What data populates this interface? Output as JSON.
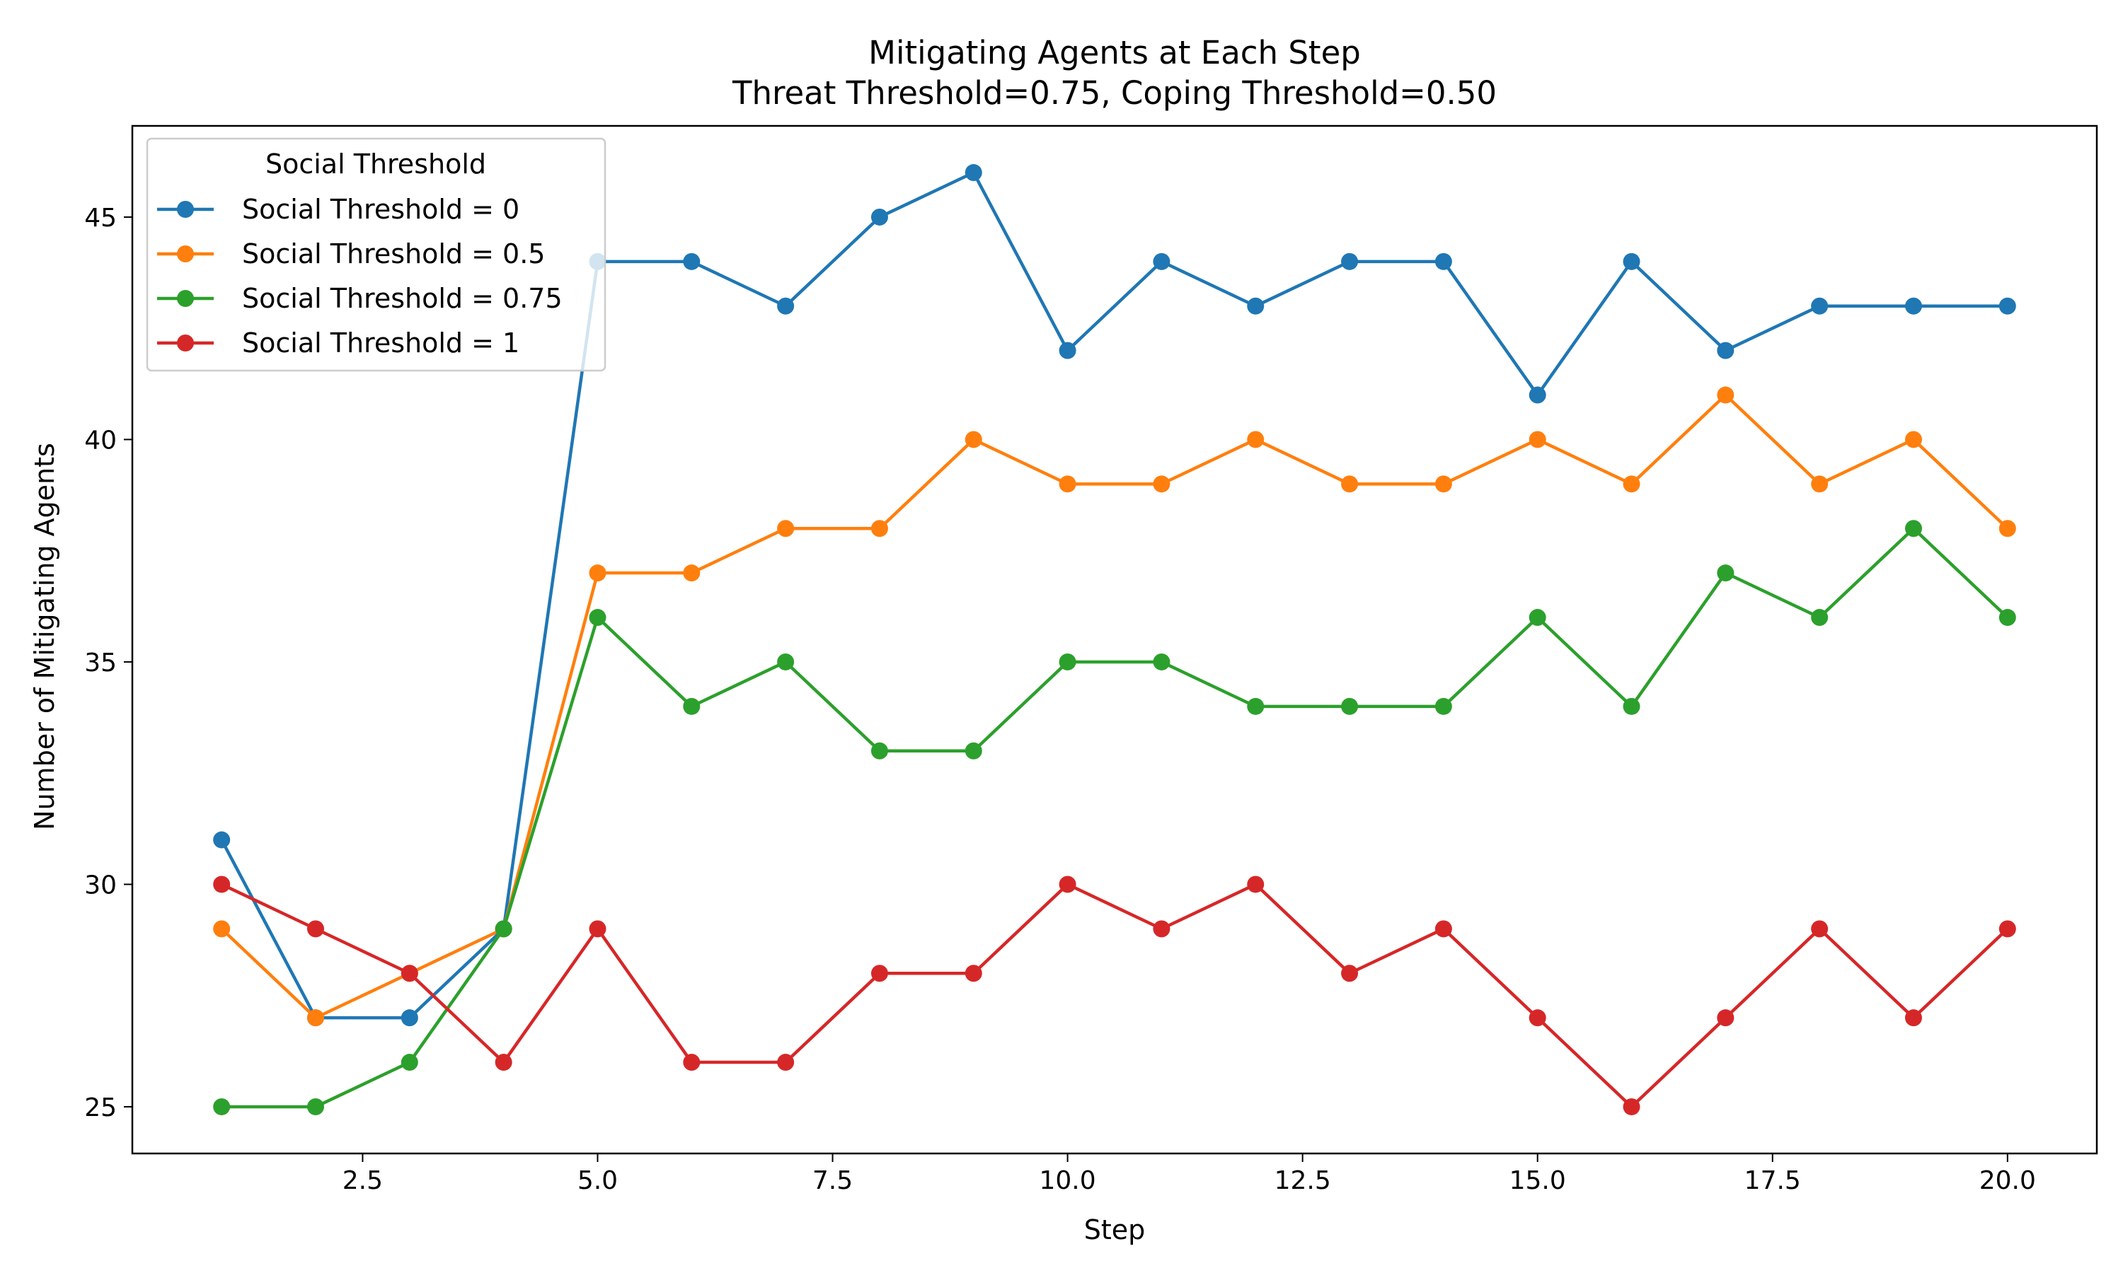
{
  "chart_data": {
    "type": "line",
    "title": "Mitigating Agents at Each Step",
    "subtitle": "Threat Threshold=0.75, Coping Threshold=0.50",
    "xlabel": "Step",
    "ylabel": "Number of Mitigating Agents",
    "xlim": [
      0.05,
      20.95
    ],
    "ylim": [
      23.95,
      47.05
    ],
    "xticks": [
      2.5,
      5.0,
      7.5,
      10.0,
      12.5,
      15.0,
      17.5,
      20.0
    ],
    "xtick_labels": [
      "2.5",
      "5.0",
      "7.5",
      "10.0",
      "12.5",
      "15.0",
      "17.5",
      "20.0"
    ],
    "yticks": [
      25,
      30,
      35,
      40,
      45
    ],
    "ytick_labels": [
      "25",
      "30",
      "35",
      "40",
      "45"
    ],
    "grid": false,
    "legend": {
      "title": "Social Threshold",
      "position": "top-left"
    },
    "x": [
      1,
      2,
      3,
      4,
      5,
      6,
      7,
      8,
      9,
      10,
      11,
      12,
      13,
      14,
      15,
      16,
      17,
      18,
      19,
      20
    ],
    "series": [
      {
        "name": "Social Threshold = 0",
        "color": "#1f77b4",
        "values": [
          31,
          27,
          27,
          29,
          44,
          44,
          43,
          45,
          46,
          42,
          44,
          43,
          44,
          44,
          41,
          44,
          42,
          43,
          43,
          43
        ]
      },
      {
        "name": "Social Threshold = 0.5",
        "color": "#ff7f0e",
        "values": [
          29,
          27,
          28,
          29,
          37,
          37,
          38,
          38,
          40,
          39,
          39,
          40,
          39,
          39,
          40,
          39,
          41,
          39,
          40,
          38
        ]
      },
      {
        "name": "Social Threshold = 0.75",
        "color": "#2ca02c",
        "values": [
          25,
          25,
          26,
          29,
          36,
          34,
          35,
          33,
          33,
          35,
          35,
          34,
          34,
          34,
          36,
          34,
          37,
          36,
          38,
          36
        ]
      },
      {
        "name": "Social Threshold = 1",
        "color": "#d62728",
        "values": [
          30,
          29,
          28,
          26,
          29,
          26,
          26,
          28,
          28,
          30,
          29,
          30,
          28,
          29,
          27,
          25,
          27,
          29,
          27,
          29
        ]
      }
    ]
  }
}
